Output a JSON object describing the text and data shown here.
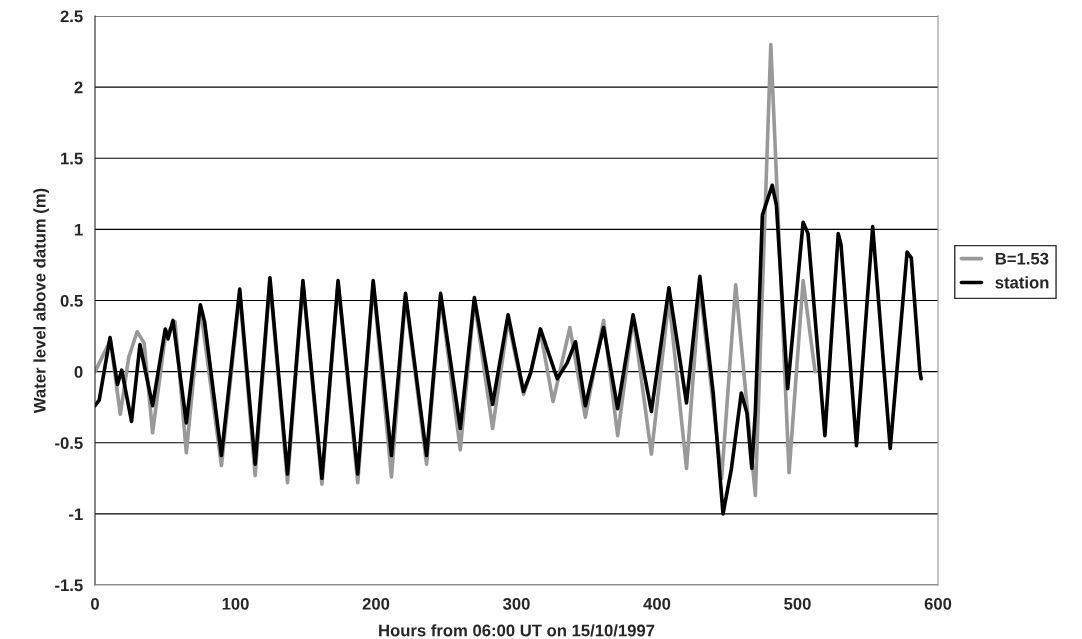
{
  "chart_data": {
    "type": "line",
    "xlabel": "Hours from 06:00 UT on 15/10/1997",
    "ylabel": "Water level above datum (m)",
    "xlim": [
      0,
      600
    ],
    "xticks": [
      0,
      100,
      200,
      300,
      400,
      500,
      600
    ],
    "ylim": [
      -1.5,
      2.5
    ],
    "yticks": [
      -1.5,
      -1,
      -0.5,
      0,
      0.5,
      1,
      1.5,
      2,
      2.5
    ],
    "grid": "y",
    "legend": "right",
    "marker": "none",
    "line_style": "solid",
    "series": [
      {
        "name": "B=1.53",
        "color": "#999999",
        "x": [
          0,
          5,
          11,
          18,
          24,
          30,
          35,
          41,
          50,
          57,
          65,
          75,
          90,
          103,
          114,
          124.5,
          137,
          148,
          161.5,
          173,
          187,
          198,
          211,
          221,
          236,
          246,
          260,
          270,
          283,
          294,
          305,
          310,
          317,
          326,
          338,
          349,
          362,
          372,
          383,
          396,
          408.5,
          421,
          430.5,
          446,
          456,
          470,
          481,
          494,
          504,
          512.5
        ],
        "values": [
          0,
          0.1,
          0.22,
          -0.3,
          0.1,
          0.28,
          0.2,
          -0.43,
          0.25,
          0.35,
          -0.57,
          0.45,
          -0.66,
          0.55,
          -0.73,
          0.64,
          -0.78,
          0.62,
          -0.79,
          0.62,
          -0.78,
          0.62,
          -0.74,
          0.53,
          -0.65,
          0.53,
          -0.55,
          0.5,
          -0.4,
          0.36,
          -0.16,
          -0.01,
          0.28,
          -0.21,
          0.31,
          -0.32,
          0.36,
          -0.45,
          0.38,
          -0.58,
          0.51,
          -0.68,
          0.6,
          -0.75,
          0.61,
          -0.87,
          2.3,
          -0.71,
          0.64,
          0
        ]
      },
      {
        "name": "station",
        "color": "#000000",
        "x": [
          0,
          3,
          10.7,
          16,
          19,
          26,
          32,
          41,
          50,
          52,
          55.5,
          65,
          75,
          78,
          90,
          103,
          114,
          124.5,
          137,
          148,
          161.5,
          173,
          187,
          198,
          211,
          221,
          236,
          246,
          260,
          270,
          283,
          294,
          305,
          310,
          317,
          329,
          336,
          342,
          349,
          362,
          372,
          383,
          396,
          408.5,
          421,
          430.5,
          440,
          447,
          453,
          460,
          464,
          467.5,
          470,
          475,
          482,
          485,
          493,
          504,
          507.5,
          519.5,
          529,
          531,
          542,
          553.5,
          566,
          578,
          581,
          587,
          588
        ],
        "values": [
          -0.24,
          -0.2,
          0.24,
          -0.09,
          0.01,
          -0.35,
          0.19,
          -0.24,
          0.3,
          0.23,
          0.36,
          -0.36,
          0.47,
          0.35,
          -0.59,
          0.58,
          -0.65,
          0.66,
          -0.72,
          0.64,
          -0.75,
          0.64,
          -0.72,
          0.64,
          -0.59,
          0.55,
          -0.59,
          0.55,
          -0.4,
          0.52,
          -0.23,
          0.4,
          -0.14,
          -0.01,
          0.3,
          -0.05,
          0.06,
          0.21,
          -0.24,
          0.31,
          -0.26,
          0.4,
          -0.28,
          0.59,
          -0.22,
          0.67,
          -0.15,
          -1.0,
          -0.68,
          -0.15,
          -0.29,
          -0.68,
          -0.28,
          1.1,
          1.31,
          1.17,
          -0.12,
          1.05,
          0.97,
          -0.45,
          0.97,
          0.89,
          -0.52,
          1.02,
          -0.54,
          0.84,
          0.8,
          0.01,
          -0.05
        ]
      }
    ]
  }
}
